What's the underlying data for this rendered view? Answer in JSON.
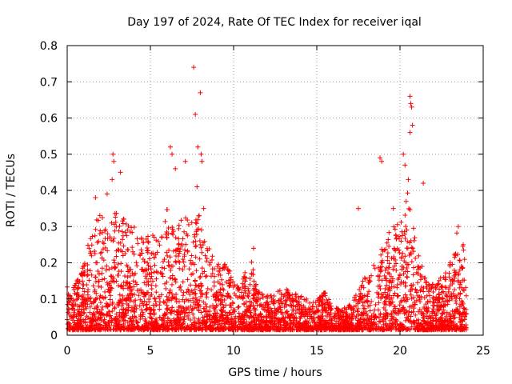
{
  "chart_data": {
    "type": "scatter",
    "title": "Day 197 of 2024, Rate Of TEC Index for receiver iqal",
    "xlabel": "GPS time / hours",
    "ylabel": "ROTI / TECUs",
    "xlim": [
      0,
      25
    ],
    "ylim": [
      0,
      0.8
    ],
    "xticks": [
      0,
      5,
      10,
      15,
      20,
      25
    ],
    "yticks": [
      0,
      0.1,
      0.2,
      0.3,
      0.4,
      0.5,
      0.6,
      0.7,
      0.8
    ],
    "xtick_labels": [
      "0",
      "5",
      "10",
      "15",
      "20",
      "25"
    ],
    "ytick_labels": [
      "0",
      "0.1",
      "0.2",
      "0.3",
      "0.4",
      "0.5",
      "0.6",
      "0.7",
      "0.8"
    ],
    "grid": true,
    "marker": "+",
    "series_color": "#ff0000",
    "envelope": {
      "description": "approximate upper envelope of the dense point cloud (hour, ROTI)",
      "x": [
        0,
        0.5,
        1,
        1.5,
        2,
        2.5,
        3,
        3.5,
        4,
        4.5,
        5,
        5.5,
        6,
        6.5,
        7,
        7.5,
        8,
        8.5,
        9,
        9.5,
        10,
        10.5,
        11,
        11.5,
        12,
        12.5,
        13,
        13.5,
        14,
        14.5,
        15,
        15.5,
        16,
        16.5,
        17,
        17.5,
        18,
        18.5,
        19,
        19.5,
        20,
        20.5,
        21,
        21.5,
        22,
        22.5,
        23,
        23.5,
        24
      ],
      "y": [
        0.15,
        0.14,
        0.2,
        0.3,
        0.34,
        0.3,
        0.35,
        0.32,
        0.3,
        0.28,
        0.28,
        0.27,
        0.35,
        0.3,
        0.34,
        0.33,
        0.35,
        0.25,
        0.21,
        0.2,
        0.16,
        0.15,
        0.22,
        0.12,
        0.11,
        0.12,
        0.14,
        0.12,
        0.11,
        0.1,
        0.1,
        0.12,
        0.08,
        0.07,
        0.09,
        0.12,
        0.18,
        0.2,
        0.25,
        0.3,
        0.35,
        0.4,
        0.25,
        0.18,
        0.15,
        0.16,
        0.2,
        0.3,
        0.25
      ]
    },
    "outliers": {
      "x": [
        2.75,
        2.8,
        2.7,
        3.2,
        2.4,
        1.7,
        6.2,
        6.3,
        6.5,
        7.1,
        7.6,
        7.7,
        7.8,
        7.85,
        8.0,
        8.05,
        8.1,
        8.2,
        11.2,
        17.5,
        18.8,
        18.9,
        19.6,
        20.2,
        20.3,
        20.6,
        20.65,
        20.7,
        20.75,
        20.6,
        20.5,
        21.4,
        23.5,
        23.8
      ],
      "y": [
        0.5,
        0.48,
        0.43,
        0.45,
        0.39,
        0.38,
        0.52,
        0.5,
        0.46,
        0.48,
        0.74,
        0.61,
        0.41,
        0.52,
        0.67,
        0.5,
        0.48,
        0.35,
        0.24,
        0.35,
        0.49,
        0.48,
        0.35,
        0.5,
        0.47,
        0.66,
        0.64,
        0.63,
        0.58,
        0.56,
        0.43,
        0.42,
        0.3,
        0.25
      ]
    },
    "point_count": 3800
  }
}
